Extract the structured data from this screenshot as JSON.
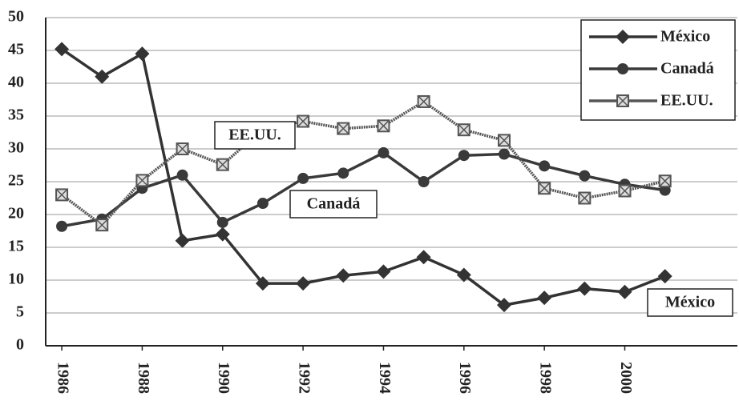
{
  "chart_data": {
    "type": "line",
    "x": [
      1986,
      1987,
      1988,
      1989,
      1990,
      1991,
      1992,
      1993,
      1994,
      1995,
      1996,
      1997,
      1998,
      1999,
      2000,
      2001
    ],
    "series": [
      {
        "name": "México",
        "color": "#333333",
        "marker": "diamond",
        "values": [
          45.2,
          41,
          44.5,
          16,
          17,
          9.5,
          9.5,
          10.7,
          11.3,
          13.5,
          10.8,
          6.2,
          7.3,
          8.7,
          8.2,
          10.6
        ]
      },
      {
        "name": "Canadá",
        "color": "#3a3a3a",
        "marker": "circle",
        "values": [
          18.2,
          19.3,
          24,
          26,
          18.8,
          21.7,
          25.5,
          26.3,
          29.4,
          25,
          29,
          29.2,
          27.4,
          25.9,
          24.6,
          23.7
        ]
      },
      {
        "name": "EE.UU.",
        "color": "#555555",
        "marker": "xsquare",
        "values": [
          23,
          18.4,
          25.2,
          30,
          27.6,
          33,
          34.2,
          33.1,
          33.5,
          37.2,
          32.9,
          31.3,
          24,
          22.5,
          23.6,
          25.1
        ]
      }
    ],
    "xlim": [
      1985.6,
      2002.8
    ],
    "xticks": [
      1986,
      1988,
      1990,
      1992,
      1994,
      1996,
      1998,
      2000
    ],
    "ylim": [
      0,
      50
    ],
    "yticks": [
      0,
      5,
      10,
      15,
      20,
      25,
      30,
      35,
      40,
      45,
      50
    ],
    "grid": true,
    "legend": "upper right",
    "annotations": [
      "EE.UU.",
      "Canadá",
      "México"
    ]
  }
}
